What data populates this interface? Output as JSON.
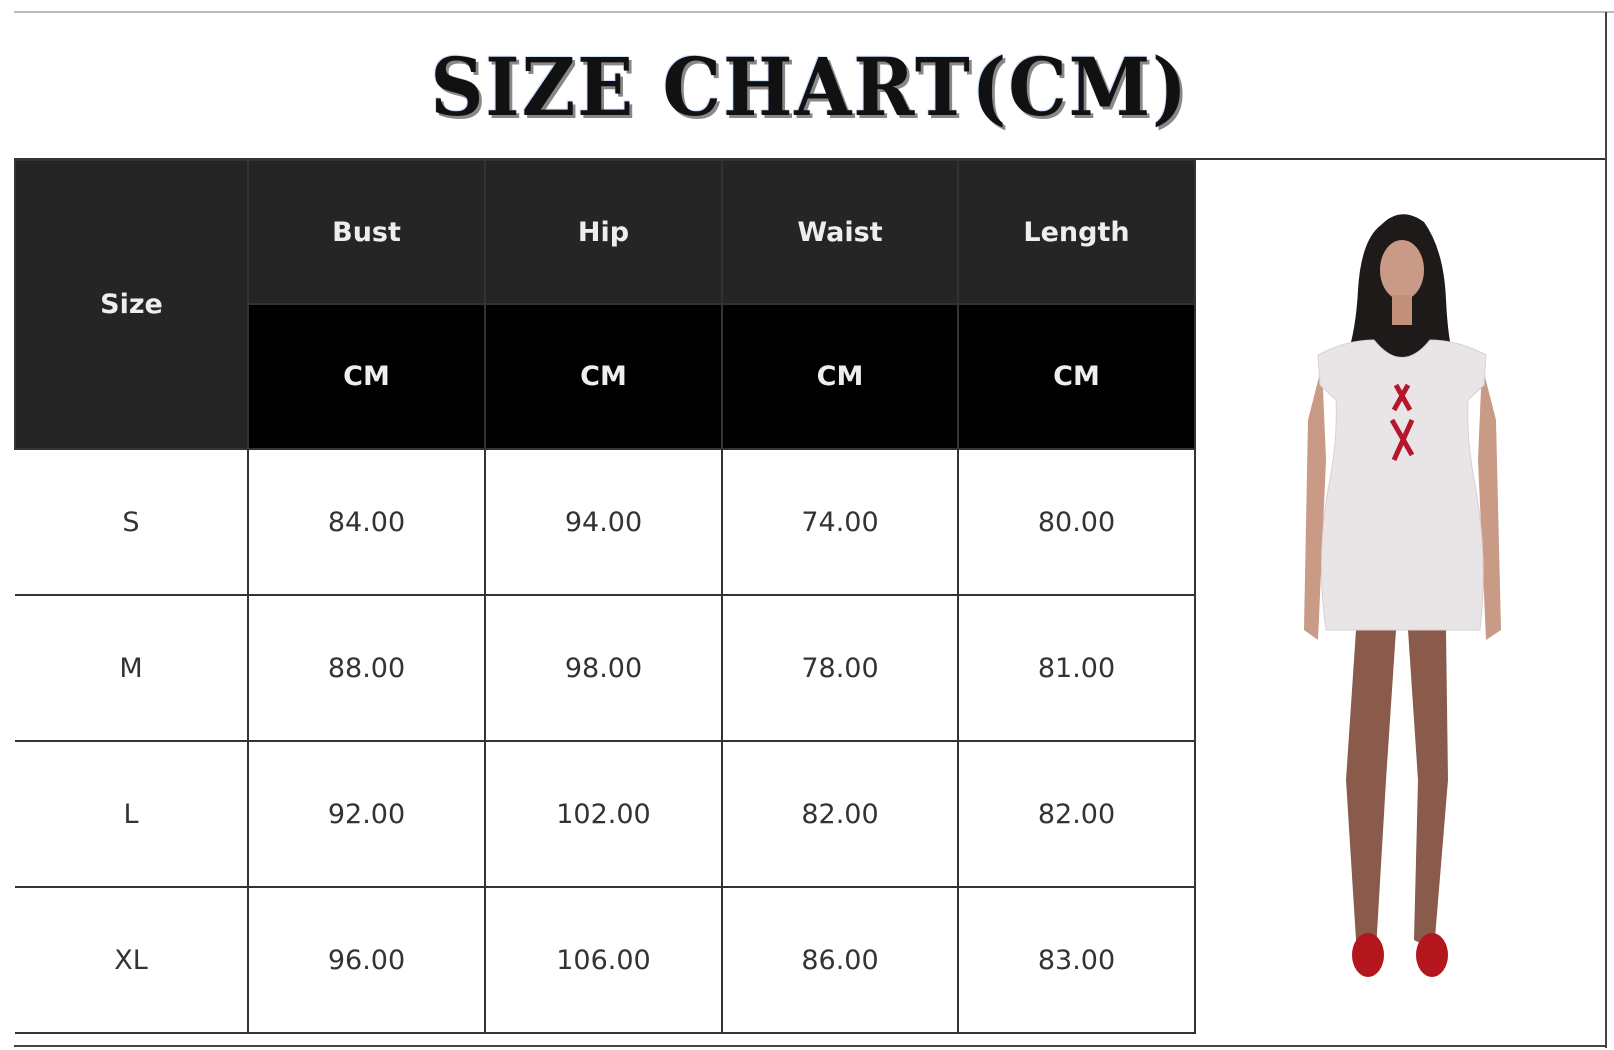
{
  "title": "SIZE CHART(CM)",
  "table": {
    "size_header": "Size",
    "columns": [
      "Bust",
      "Hip",
      "Waist",
      "Length"
    ],
    "units": [
      "CM",
      "CM",
      "CM",
      "CM"
    ],
    "rows": [
      {
        "size": "S",
        "values": [
          "84.00",
          "94.00",
          "74.00",
          "80.00"
        ]
      },
      {
        "size": "M",
        "values": [
          "88.00",
          "98.00",
          "78.00",
          "81.00"
        ]
      },
      {
        "size": "L",
        "values": [
          "92.00",
          "102.00",
          "82.00",
          "82.00"
        ]
      },
      {
        "size": "XL",
        "values": [
          "96.00",
          "106.00",
          "86.00",
          "83.00"
        ]
      }
    ]
  },
  "colors": {
    "header_dark": "#252525",
    "header_black": "#000000",
    "dress": "#e9e4e6",
    "ribbon": "#b5162b"
  }
}
